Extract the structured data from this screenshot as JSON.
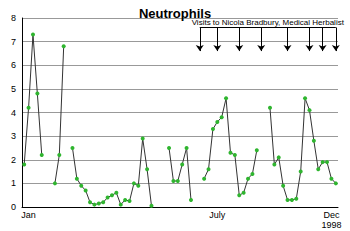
{
  "chart_data": {
    "type": "line",
    "title": "Neutrophils",
    "categories": [
      null,
      "Jan",
      null,
      null,
      null,
      null,
      null,
      null,
      null,
      null,
      null,
      null,
      null,
      null,
      null,
      null,
      null,
      null,
      null,
      null,
      null,
      null,
      null,
      null,
      null,
      null,
      null,
      null,
      null,
      null,
      null,
      null,
      null,
      null,
      null,
      null,
      null,
      null,
      null,
      null,
      null,
      null,
      null,
      null,
      "July",
      null,
      null,
      null,
      null,
      null,
      null,
      null,
      null,
      null,
      null,
      null,
      null,
      null,
      null,
      null,
      null,
      null,
      null,
      null,
      null,
      null,
      null,
      null,
      null,
      null,
      "Dec\n1998",
      null
    ],
    "values": [
      1.8,
      4.2,
      7.3,
      4.8,
      2.2,
      null,
      null,
      1.0,
      2.2,
      6.8,
      null,
      2.5,
      1.2,
      0.9,
      0.7,
      0.2,
      0.1,
      0.15,
      0.2,
      0.4,
      0.5,
      0.6,
      0.1,
      0.3,
      0.25,
      1.0,
      0.9,
      2.9,
      1.6,
      0.05,
      null,
      null,
      null,
      2.5,
      1.1,
      1.1,
      1.8,
      2.5,
      0.3,
      null,
      null,
      1.2,
      1.6,
      3.3,
      3.6,
      3.8,
      4.6,
      2.3,
      2.2,
      0.5,
      0.6,
      1.2,
      1.4,
      2.4,
      null,
      null,
      4.2,
      1.8,
      2.1,
      0.9,
      0.3,
      0.3,
      0.35,
      1.5,
      4.6,
      4.1,
      2.8,
      1.6,
      1.9,
      1.9,
      1.2,
      1.0
    ],
    "color": "#2fb52f",
    "marker": "circle",
    "ylim": [
      0,
      8
    ],
    "yticks": [
      0,
      1,
      2,
      3,
      4,
      5,
      6,
      7,
      8
    ],
    "grid": true,
    "annotation": {
      "text": "Visits to Nicola Bradbury, Medical Herbalist",
      "x": [
        40,
        44,
        49,
        54,
        60,
        65,
        68,
        71
      ],
      "arrow_from": 7.6,
      "arrow_to": 6.6
    }
  }
}
